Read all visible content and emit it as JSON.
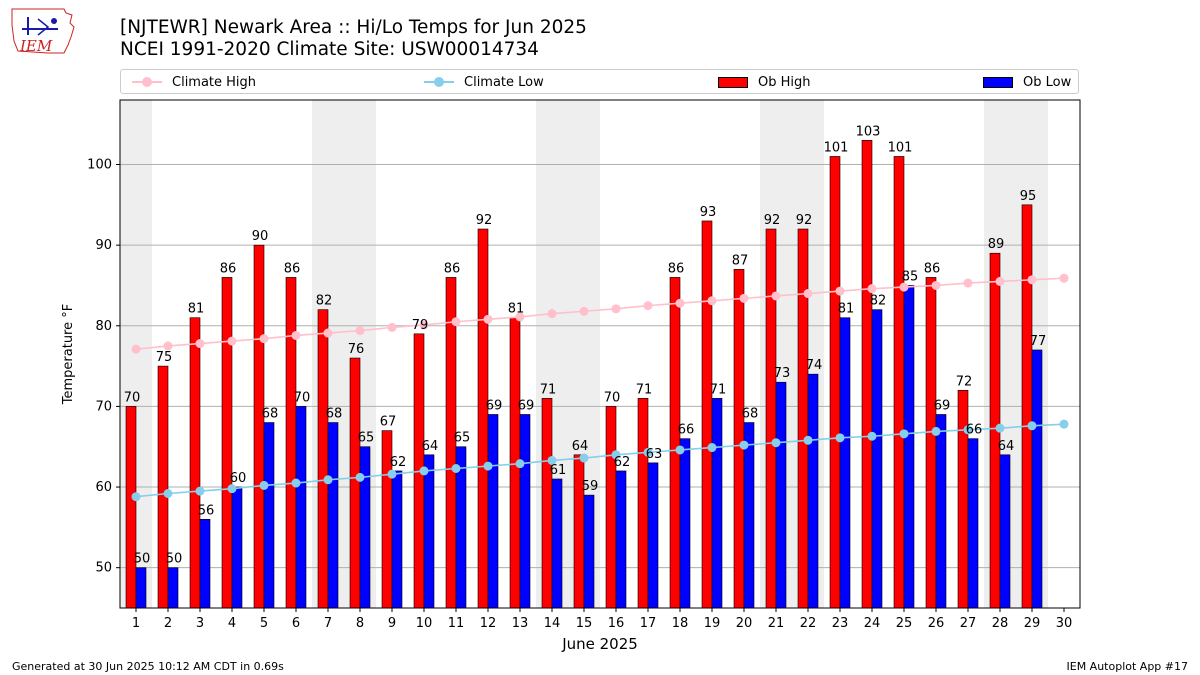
{
  "header": {
    "title_line1": "[NJTEWR] Newark Area :: Hi/Lo Temps for Jun 2025",
    "title_line2": "NCEI 1991-2020 Climate Site: USW00014734",
    "logo_text": "IEM"
  },
  "legend": {
    "items": [
      {
        "label": "Climate High",
        "kind": "line",
        "color": "#ffc0cb"
      },
      {
        "label": "Climate Low",
        "kind": "line",
        "color": "#87ceeb"
      },
      {
        "label": "Ob High",
        "kind": "bar",
        "color": "#ff0000"
      },
      {
        "label": "Ob Low",
        "kind": "bar",
        "color": "#0000ff"
      }
    ]
  },
  "footer": {
    "left": "Generated at 30 Jun 2025 10:12 AM CDT in 0.69s",
    "right": "IEM Autoplot App #17"
  },
  "chart_data": {
    "type": "bar",
    "xlabel": "June 2025",
    "ylabel": "Temperature °F",
    "ylim": [
      45,
      108
    ],
    "yticks": [
      50,
      60,
      70,
      80,
      90,
      100
    ],
    "grid": true,
    "legend_position": "top",
    "weekend_shading_color": "#eeeeee",
    "weekend_days": [
      1,
      7,
      8,
      14,
      15,
      21,
      22,
      28,
      29
    ],
    "categories": [
      "1",
      "2",
      "3",
      "4",
      "5",
      "6",
      "7",
      "8",
      "9",
      "10",
      "11",
      "12",
      "13",
      "14",
      "15",
      "16",
      "17",
      "18",
      "19",
      "20",
      "21",
      "22",
      "23",
      "24",
      "25",
      "26",
      "27",
      "28",
      "29",
      "30"
    ],
    "series": [
      {
        "name": "Ob High",
        "type": "bar",
        "color": "#ff0000",
        "values": [
          70,
          75,
          81,
          86,
          90,
          86,
          82,
          76,
          67,
          79,
          86,
          92,
          81,
          71,
          64,
          70,
          71,
          86,
          93,
          87,
          92,
          92,
          101,
          103,
          101,
          86,
          72,
          89,
          95,
          null
        ]
      },
      {
        "name": "Ob Low",
        "type": "bar",
        "color": "#0000ff",
        "values": [
          50,
          50,
          56,
          60,
          68,
          70,
          68,
          65,
          62,
          64,
          65,
          69,
          69,
          61,
          59,
          62,
          63,
          66,
          71,
          68,
          73,
          74,
          81,
          82,
          85,
          69,
          66,
          64,
          77,
          null
        ]
      },
      {
        "name": "Climate High",
        "type": "line",
        "color": "#ffc0cb",
        "values": [
          77.1,
          77.5,
          77.8,
          78.1,
          78.4,
          78.8,
          79.1,
          79.4,
          79.8,
          80.1,
          80.5,
          80.8,
          81.1,
          81.5,
          81.8,
          82.1,
          82.5,
          82.8,
          83.1,
          83.4,
          83.7,
          84.0,
          84.3,
          84.6,
          84.8,
          85.0,
          85.3,
          85.5,
          85.7,
          85.9
        ]
      },
      {
        "name": "Climate Low",
        "type": "line",
        "color": "#87ceeb",
        "values": [
          58.8,
          59.2,
          59.5,
          59.8,
          60.2,
          60.5,
          60.9,
          61.2,
          61.6,
          62.0,
          62.3,
          62.6,
          62.9,
          63.3,
          63.6,
          64.0,
          64.3,
          64.6,
          64.9,
          65.2,
          65.5,
          65.8,
          66.1,
          66.3,
          66.6,
          66.9,
          67.1,
          67.3,
          67.6,
          67.8
        ]
      }
    ]
  }
}
